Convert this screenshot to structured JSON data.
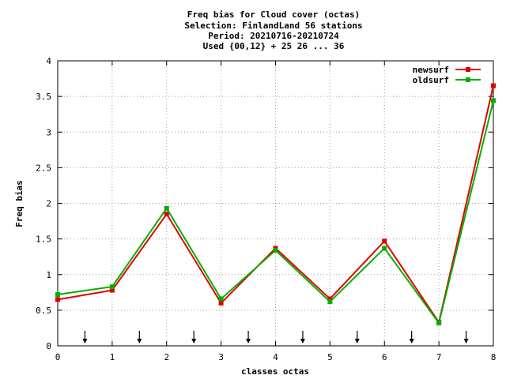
{
  "chart_data": {
    "type": "line",
    "title_lines": [
      "Freq bias  for Cloud cover (octas)",
      "Selection: FinlandLand     56 stations",
      "Period: 20210716-20210724",
      "Used {00,12} + 25 26 ... 36"
    ],
    "xlabel": "classes octas",
    "ylabel": "Freq bias",
    "xlim": [
      0,
      8
    ],
    "ylim": [
      0,
      4
    ],
    "x_ticks": [
      "0",
      "1",
      "2",
      "3",
      "4",
      "5",
      "6",
      "7",
      "8"
    ],
    "y_ticks": [
      "0",
      "0.5",
      "1",
      "1.5",
      "2",
      "2.5",
      "3",
      "3.5",
      "4"
    ],
    "grid": true,
    "legend_position": "top-right",
    "arrow_markers_x": [
      0.5,
      1.5,
      2.5,
      3.5,
      4.5,
      5.5,
      6.5,
      7.5
    ],
    "x": [
      0,
      1,
      2,
      3,
      4,
      5,
      6,
      7,
      8
    ],
    "series": [
      {
        "name": "newsurf",
        "color": "#e00000",
        "values": [
          0.65,
          0.78,
          1.85,
          0.6,
          1.37,
          0.66,
          1.47,
          0.33,
          3.65
        ]
      },
      {
        "name": "oldsurf",
        "color": "#00b000",
        "values": [
          0.72,
          0.83,
          1.93,
          0.66,
          1.34,
          0.62,
          1.37,
          0.32,
          3.44
        ]
      }
    ]
  }
}
